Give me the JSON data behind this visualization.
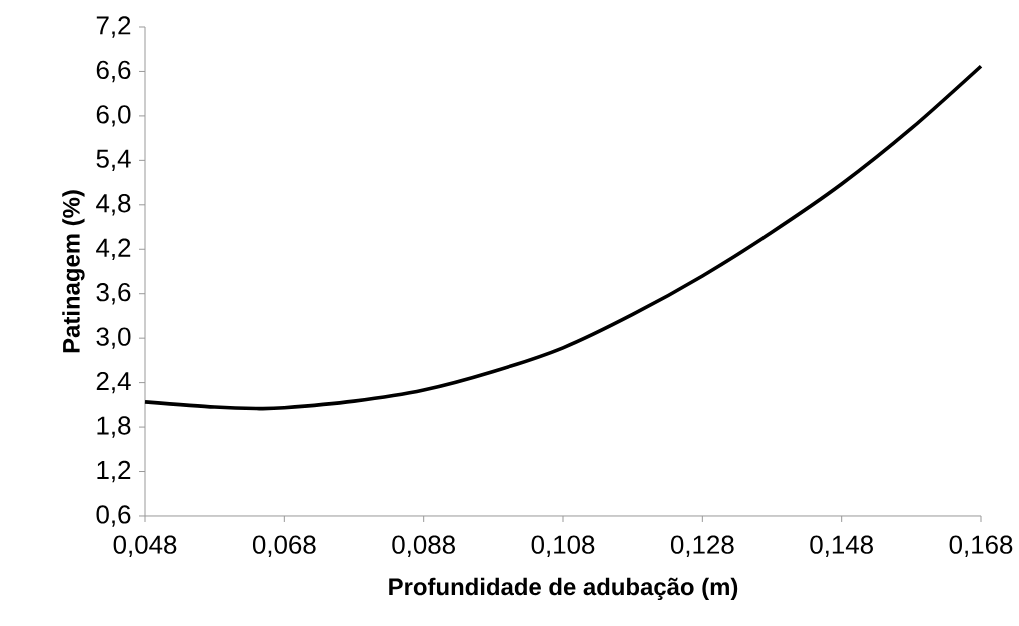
{
  "chart_data": {
    "type": "line",
    "xlabel": "Profundidade de adubação (m)",
    "ylabel": "Patinagem (%)",
    "x": [
      0.048,
      0.058,
      0.064,
      0.068,
      0.078,
      0.088,
      0.098,
      0.108,
      0.118,
      0.128,
      0.138,
      0.148,
      0.158,
      0.168
    ],
    "values": [
      2.14,
      2.07,
      2.05,
      2.06,
      2.15,
      2.3,
      2.55,
      2.87,
      3.32,
      3.84,
      4.43,
      5.08,
      5.83,
      6.67
    ],
    "color": "#000000",
    "xlim": [
      0.048,
      0.168
    ],
    "xticks": [
      {
        "value": 0.048,
        "label": "0,048"
      },
      {
        "value": 0.068,
        "label": "0,068"
      },
      {
        "value": 0.088,
        "label": "0,088"
      },
      {
        "value": 0.108,
        "label": "0,108"
      },
      {
        "value": 0.128,
        "label": "0,128"
      },
      {
        "value": 0.148,
        "label": "0,148"
      },
      {
        "value": 0.168,
        "label": "0,168"
      }
    ],
    "ylim": [
      0.6,
      7.2
    ],
    "yticks": [
      {
        "value": 0.6,
        "label": "0,6"
      },
      {
        "value": 1.2,
        "label": "1,2"
      },
      {
        "value": 1.8,
        "label": "1,8"
      },
      {
        "value": 2.4,
        "label": "2,4"
      },
      {
        "value": 3.0,
        "label": "3,0"
      },
      {
        "value": 3.6,
        "label": "3,6"
      },
      {
        "value": 4.2,
        "label": "4,2"
      },
      {
        "value": 4.8,
        "label": "4,8"
      },
      {
        "value": 5.4,
        "label": "5,4"
      },
      {
        "value": 6.0,
        "label": "6,0"
      },
      {
        "value": 6.6,
        "label": "6,6"
      },
      {
        "value": 7.2,
        "label": "7,2"
      }
    ],
    "grid": false,
    "marker": "none",
    "line_style": "solid"
  }
}
